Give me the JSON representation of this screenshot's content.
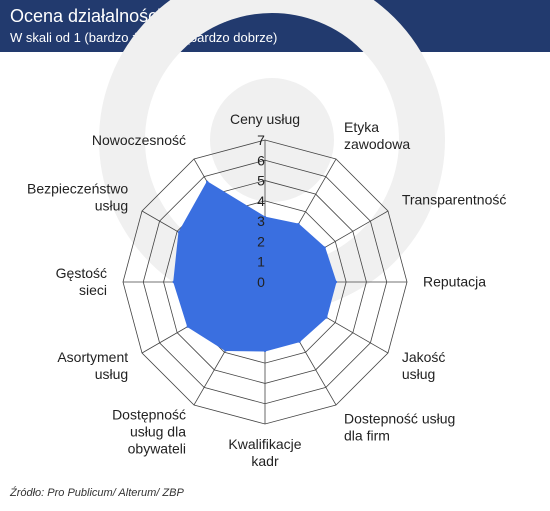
{
  "header": {
    "title": "Ocena działalności banków",
    "subtitle": "W skali od 1 (bardzo źle) do 7 (bardzo dobrze)"
  },
  "source": "Źródło: Pro Publicum/ Alterum/ ZBP",
  "colors": {
    "header_bg": "#223a6e",
    "fill": "#3a6fe0",
    "grid": "#444444",
    "watermark": "#f0f0f0"
  },
  "chart_data": {
    "type": "radar",
    "title": "Ocena działalności banków",
    "subtitle": "W skali od 1 (bardzo źle) do 7 (bardzo dobrze)",
    "scale_min": 0,
    "scale_max": 7,
    "tick_labels": [
      "0",
      "1",
      "2",
      "3",
      "4",
      "5",
      "6",
      "7"
    ],
    "categories": [
      [
        "Ceny usług"
      ],
      [
        "Etyka",
        "zawodowa"
      ],
      [
        "Transparentność"
      ],
      [
        "Reputacja"
      ],
      [
        "Jakość",
        "usług"
      ],
      [
        "Dostepność usług",
        "dla firm"
      ],
      [
        "Kwalifikacje",
        "kadr"
      ],
      [
        "Dostępność",
        "usług dla",
        "obywateli"
      ],
      [
        "Asortyment",
        "usług"
      ],
      [
        "Gęstość",
        "sieci"
      ],
      [
        "Bezpieczeństwo",
        "usług"
      ],
      [
        "Nowoczesność"
      ]
    ],
    "values": [
      3.2,
      3.3,
      3.4,
      3.5,
      3.5,
      3.4,
      3.4,
      3.9,
      4.4,
      4.5,
      4.9,
      5.7
    ]
  }
}
